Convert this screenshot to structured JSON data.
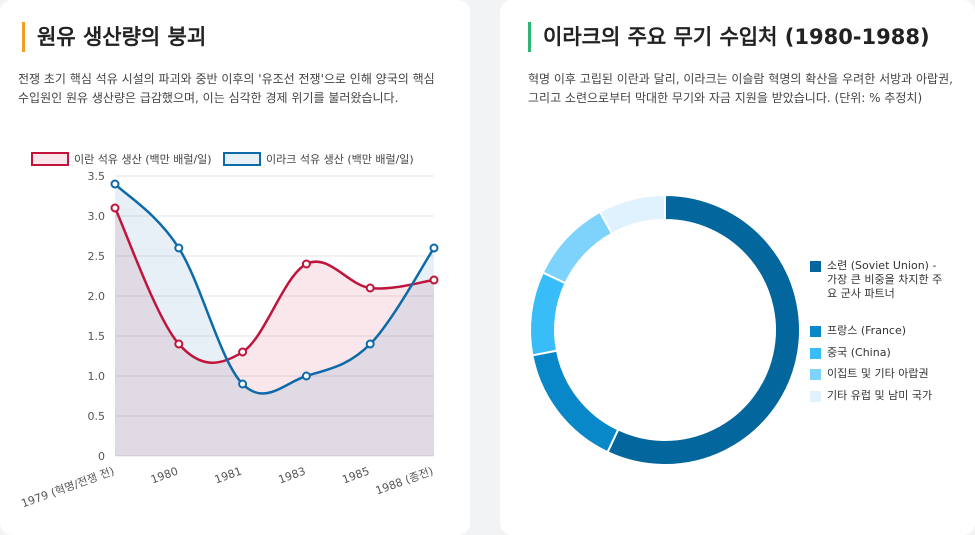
{
  "colors": {
    "iran": "#c0143c",
    "iraq": "#0d6aa8",
    "donut": [
      "#03669d",
      "#0887c9",
      "#38bdf8",
      "#7dd3fc",
      "#e0f2fe"
    ]
  },
  "left": {
    "title": "원유 생산량의 붕괴",
    "desc": "전쟁 초기 핵심 석유 시설의 파괴와 중반 이후의 '유조선 전쟁'으로 인해 양국의 핵심 수입원인 원유 생산량은 급감했으며, 이는 심각한 경제 위기를 불러왔습니다."
  },
  "right": {
    "title": "이라크의 주요 무기 수입처 (1980-1988)",
    "desc": "혁명 이후 고립된 이란과 달리, 이라크는 이슬람 혁명의 확산을 우려한 서방과 아랍권, 그리고 소련으로부터 막대한 무기와 자금 지원을 받았습니다. (단위: % 추정치)"
  },
  "chart_data": [
    {
      "type": "line",
      "categories": [
        "1979 (혁명/전쟁 전)",
        "1980",
        "1981",
        "1983",
        "1985",
        "1988 (종전)"
      ],
      "series": [
        {
          "name": "이란 석유 생산 (백만 배럴/일)",
          "values": [
            3.1,
            1.4,
            1.3,
            2.4,
            2.1,
            2.2
          ]
        },
        {
          "name": "이라크 석유 생산 (백만 배럴/일)",
          "values": [
            3.4,
            2.6,
            0.9,
            1.0,
            1.4,
            2.6
          ]
        }
      ],
      "ylim": [
        0,
        3.5
      ],
      "yticks": [
        "0",
        "0.5",
        "1.0",
        "1.5",
        "2.0",
        "2.5",
        "3.0",
        "3.5"
      ],
      "legend_position": "top"
    },
    {
      "type": "pie",
      "labels": [
        "소련 (Soviet Union) - 가장 큰 비중을 차지한 주요 군사 파트너",
        "프랑스 (France)",
        "중국 (China)",
        "이집트 및 기타 아랍권",
        "기타 유럽 및 남미 국가"
      ],
      "values": [
        57,
        15,
        10,
        10,
        8
      ],
      "legend_position": "right"
    }
  ]
}
